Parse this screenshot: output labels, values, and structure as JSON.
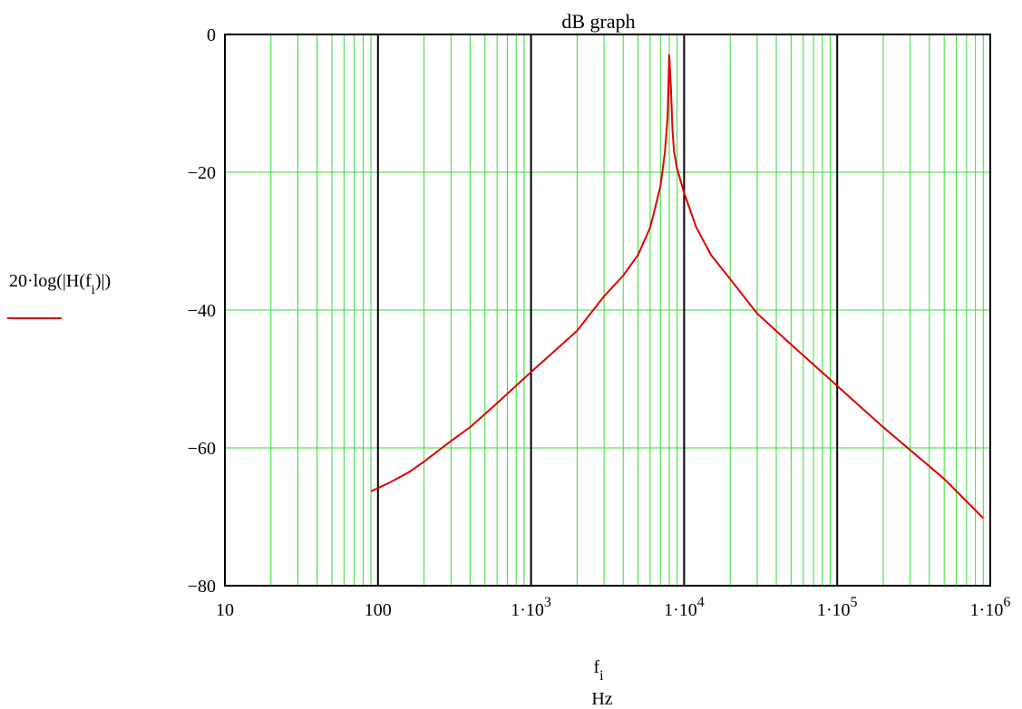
{
  "chart_data": {
    "type": "line",
    "title": "dB graph",
    "xscale": "log",
    "xlim": [
      10,
      1000000
    ],
    "ylim": [
      -80,
      0
    ],
    "grid": true,
    "grid_color": "#33dd33",
    "decade_line_color": "#000000",
    "x_ticks": [
      10,
      100,
      1000,
      10000,
      100000,
      1000000
    ],
    "x_tick_labels": [
      {
        "base": "10",
        "exp": ""
      },
      {
        "base": "100",
        "exp": ""
      },
      {
        "base": "1·10",
        "exp": "3"
      },
      {
        "base": "1·10",
        "exp": "4"
      },
      {
        "base": "1·10",
        "exp": "5"
      },
      {
        "base": "1·10",
        "exp": "6"
      }
    ],
    "y_ticks": [
      0,
      -20,
      -40,
      -60,
      -80
    ],
    "y_tick_labels": [
      "0",
      "−20",
      "−40",
      "−60",
      "−80"
    ],
    "xlabel": {
      "var": "f",
      "sub": "i",
      "unit": "Hz"
    },
    "ylabel": {
      "text": "20·log(|H(f",
      "sub": "i",
      "close": ")|)"
    },
    "series": [
      {
        "name": "20·log(|H(fi)|)",
        "color": "#dd0000",
        "x": [
          90,
          120,
          160,
          200,
          300,
          400,
          600,
          1000,
          1500,
          2000,
          3000,
          4000,
          5000,
          6000,
          6500,
          7000,
          7500,
          7800,
          8000,
          8200,
          8400,
          8600,
          9000,
          10000,
          12000,
          15000,
          20000,
          30000,
          50000,
          100000,
          200000,
          500000,
          900000
        ],
        "y": [
          -66.3,
          -65,
          -63.5,
          -62,
          -59,
          -57,
          -53.5,
          -49,
          -45.5,
          -43,
          -38,
          -35,
          -32,
          -28,
          -25,
          -22,
          -17,
          -12,
          -3,
          -8,
          -14,
          -17,
          -19.5,
          -23,
          -28,
          -32,
          -35.5,
          -40.5,
          -45,
          -51,
          -57,
          -64.5,
          -70.2
        ]
      }
    ]
  }
}
